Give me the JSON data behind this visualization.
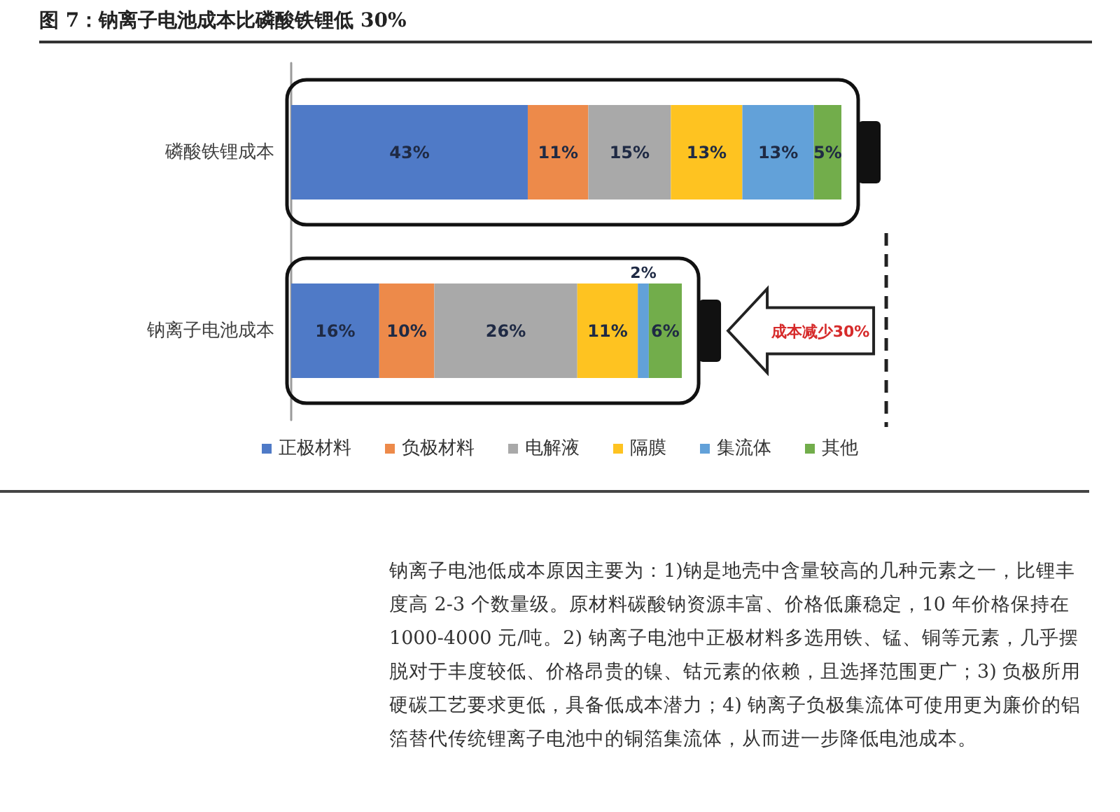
{
  "chart_data": {
    "type": "bar",
    "orientation": "horizontal",
    "stacked": true,
    "title": "图 7：钠离子电池成本比磷酸铁锂低 30%",
    "categories": [
      "磷酸铁锂成本",
      "钠离子电池成本"
    ],
    "series": [
      {
        "name": "正极材料",
        "color": "#4f7ac7",
        "values": [
          43,
          16
        ],
        "value_labels": [
          "43%",
          "16%"
        ]
      },
      {
        "name": "负极材料",
        "color": "#ed8a4a",
        "values": [
          11,
          10
        ],
        "value_labels": [
          "11%",
          "10%"
        ]
      },
      {
        "name": "电解液",
        "color": "#a9a9a9",
        "values": [
          15,
          26
        ],
        "value_labels": [
          "15%",
          "26%"
        ]
      },
      {
        "name": "隔膜",
        "color": "#fec321",
        "values": [
          13,
          11
        ],
        "value_labels": [
          "13%",
          "11%"
        ]
      },
      {
        "name": "集流体",
        "color": "#62a1d9",
        "values": [
          13,
          2
        ],
        "value_labels": [
          "13%",
          "2%"
        ]
      },
      {
        "name": "其他",
        "color": "#72ad4b",
        "values": [
          5,
          6
        ],
        "value_labels": [
          "5%",
          "6%"
        ]
      }
    ],
    "legend": "bottom",
    "tick_labels": "y",
    "annotations": [
      "成本减少30%",
      "钠离子电池低成本原因主要为：1)钠是地壳中含量较高的几种元素之一，比锂丰度高 2-3 个数量级。原材料碳酸钠资源丰富、价格低廉稳定，10 年价格保持在 1000-4000 元/吨。2) 钠离子电池中正极材料多选用铁、锰、铜等元素，几乎摆脱对于丰度较低、价格昂贵的镍、钴元素的依赖，且选择范围更广；3) 负极所用硬碳工艺要求更低，具备低成本潜力；4) 钠离子负极集流体可使用更为廉价的铝箔替代传统锂离子电池中的铜箔集流体，从而进一步降低电池成本。"
    ]
  }
}
